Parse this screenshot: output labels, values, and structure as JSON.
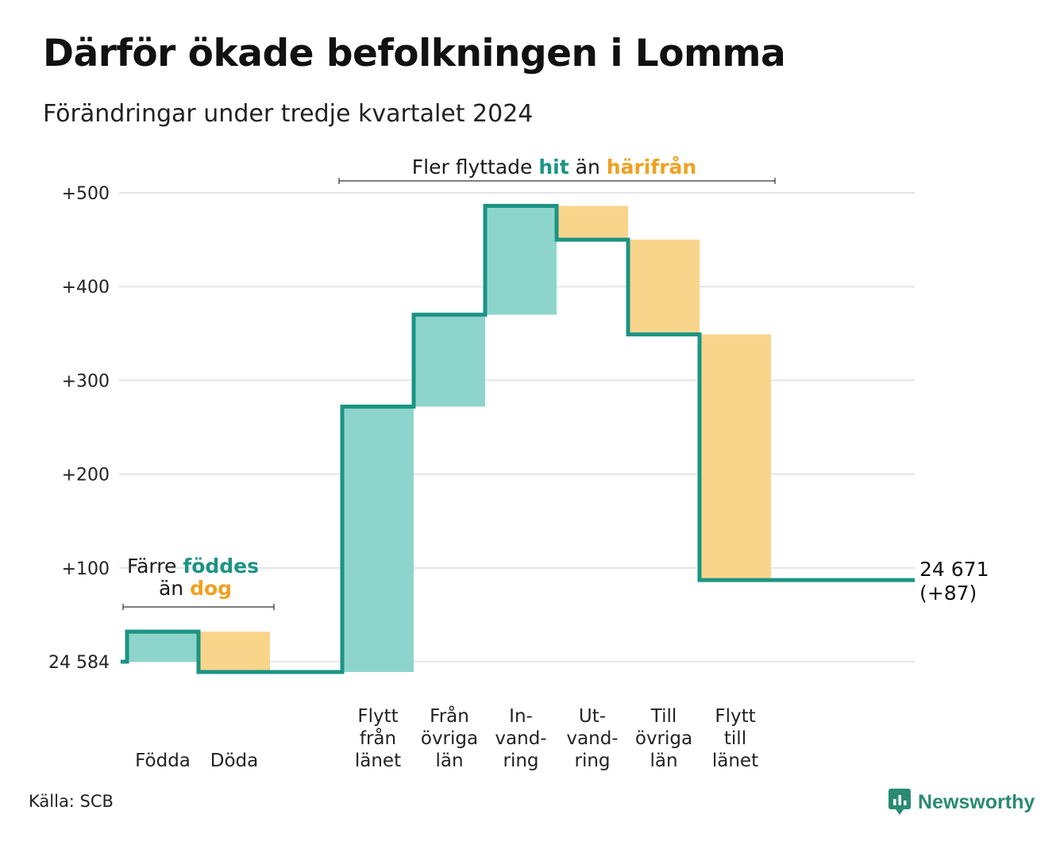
{
  "title": "Därför ökade befolkningen i Lomma",
  "subtitle": "Förändringar under tredje kvartalet 2024",
  "source": "Källa: SCB",
  "brand": {
    "name": "Newsworthy",
    "icon": "newsworthy-logo-icon"
  },
  "colors": {
    "increase_fill": "#8dd5cc",
    "decrease_fill": "#f9d58c",
    "line": "#1c9484",
    "teal_text": "#1c9484",
    "orange_text": "#f0a020",
    "grid": "#e4e4e8"
  },
  "annotations": {
    "left": {
      "line1_a": "Färre ",
      "line1_b": "föddes",
      "line2_a": "än ",
      "line2_b": "dog"
    },
    "top": {
      "a": "Fler flyttade ",
      "b": "hit",
      "c": " än ",
      "d": "härifrån"
    }
  },
  "chart_data": {
    "type": "waterfall",
    "start_label": "24 584",
    "end_label": "24 671",
    "end_change": "(+87)",
    "ylim": [
      0,
      500
    ],
    "yticks": [
      {
        "value": 100,
        "label": "+100"
      },
      {
        "value": 200,
        "label": "+200"
      },
      {
        "value": 300,
        "label": "+300"
      },
      {
        "value": 400,
        "label": "+400"
      },
      {
        "value": 500,
        "label": "+500"
      }
    ],
    "steps": [
      {
        "label": [
          "Födda"
        ],
        "value": 32,
        "kind": "increase"
      },
      {
        "label": [
          "Döda"
        ],
        "value": -43,
        "kind": "decrease"
      },
      {
        "label": [
          "Flytt",
          "från",
          "länet"
        ],
        "value": 283,
        "kind": "increase"
      },
      {
        "label": [
          "Från",
          "övriga",
          "län"
        ],
        "value": 98,
        "kind": "increase"
      },
      {
        "label": [
          "In-",
          "vand-",
          "ring"
        ],
        "value": 116,
        "kind": "increase"
      },
      {
        "label": [
          "Ut-",
          "vand-",
          "ring"
        ],
        "value": -36,
        "kind": "decrease"
      },
      {
        "label": [
          "Till",
          "övriga",
          "län"
        ],
        "value": -101,
        "kind": "decrease"
      },
      {
        "label": [
          "Flytt",
          "till",
          "länet"
        ],
        "value": -262,
        "kind": "decrease"
      }
    ]
  }
}
